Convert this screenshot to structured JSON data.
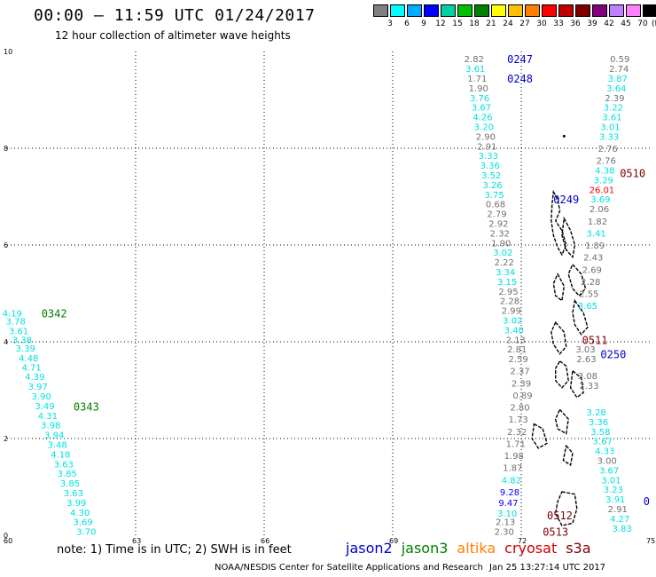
{
  "header": {
    "title": "00:00 – 11:59 UTC 01/24/2017",
    "subtitle": "12 hour collection of altimeter wave heights"
  },
  "colorbar": {
    "colors": [
      "#808080",
      "#00ffff",
      "#00aaff",
      "#0000ff",
      "#00d0a0",
      "#00c000",
      "#008000",
      "#ffff00",
      "#ffc000",
      "#ff8000",
      "#ff0000",
      "#c00000",
      "#800000",
      "#800080",
      "#c080ff",
      "#ff80ff",
      "#000000"
    ],
    "labels": [
      "3",
      "6",
      "9",
      "12",
      "15",
      "18",
      "21",
      "24",
      "27",
      "30",
      "33",
      "36",
      "39",
      "42",
      "45",
      "70"
    ],
    "unit": "(ft)"
  },
  "axes": {
    "x_ticks": [
      "60",
      "63",
      "66",
      "69",
      "72",
      "75"
    ],
    "y_ticks": [
      "0",
      "2",
      "4",
      "6",
      "8",
      "10"
    ]
  },
  "tracks": [
    {
      "label": "0342",
      "label_color": "#008000",
      "label_lat": 4.6,
      "label_lon": 60.8,
      "points": [
        {
          "lat": 4.6,
          "lon": 60.12,
          "v": "4.19",
          "c": "#00e0e0"
        },
        {
          "lat": 4.43,
          "lon": 60.2,
          "v": "3.78",
          "c": "#00e0e0"
        },
        {
          "lat": 4.23,
          "lon": 60.27,
          "v": "3.61",
          "c": "#00e0e0"
        },
        {
          "lat": 4.05,
          "lon": 60.35,
          "v": "3.38",
          "c": "#00e0e0"
        },
        {
          "lat": 3.87,
          "lon": 60.43,
          "v": "3.39",
          "c": "#00e0e0"
        },
        {
          "lat": 3.67,
          "lon": 60.5,
          "v": "4.48",
          "c": "#00e0e0"
        },
        {
          "lat": 3.48,
          "lon": 60.57,
          "v": "4.71",
          "c": "#00e0e0"
        },
        {
          "lat": 3.28,
          "lon": 60.65,
          "v": "4.39",
          "c": "#00e0e0"
        },
        {
          "lat": 3.08,
          "lon": 60.72,
          "v": "3.97",
          "c": "#00e0e0"
        },
        {
          "lat": 2.88,
          "lon": 60.8,
          "v": "3.90",
          "c": "#00e0e0"
        },
        {
          "lat": 2.68,
          "lon": 60.88,
          "v": "3.49",
          "c": "#00e0e0"
        }
      ]
    },
    {
      "label": "0343",
      "label_color": "#008000",
      "label_lat": 2.67,
      "label_lon": 61.55,
      "points": [
        {
          "lat": 2.48,
          "lon": 60.95,
          "v": "4.31",
          "c": "#00e0e0"
        },
        {
          "lat": 2.28,
          "lon": 61.02,
          "v": "3.98",
          "c": "#00e0e0"
        },
        {
          "lat": 2.08,
          "lon": 61.1,
          "v": "3.94",
          "c": "#00e0e0"
        },
        {
          "lat": 1.88,
          "lon": 61.17,
          "v": "3.48",
          "c": "#00e0e0"
        },
        {
          "lat": 1.68,
          "lon": 61.25,
          "v": "4.18",
          "c": "#00e0e0"
        },
        {
          "lat": 1.48,
          "lon": 61.32,
          "v": "3.63",
          "c": "#00e0e0"
        },
        {
          "lat": 1.28,
          "lon": 61.4,
          "v": "3.85",
          "c": "#00e0e0"
        },
        {
          "lat": 1.08,
          "lon": 61.47,
          "v": "3.85",
          "c": "#00e0e0"
        },
        {
          "lat": 0.88,
          "lon": 61.55,
          "v": "3.63",
          "c": "#00e0e0"
        },
        {
          "lat": 0.68,
          "lon": 61.62,
          "v": "3.99",
          "c": "#00e0e0"
        },
        {
          "lat": 0.48,
          "lon": 61.7,
          "v": "4.30",
          "c": "#00e0e0"
        },
        {
          "lat": 0.28,
          "lon": 61.77,
          "v": "3.69",
          "c": "#00e0e0"
        },
        {
          "lat": 0.08,
          "lon": 61.85,
          "v": "3.70",
          "c": "#00e0e0"
        }
      ]
    },
    {
      "label": "0247",
      "label_color": "#0000cc",
      "label_lat": 9.85,
      "label_lon": 71.67,
      "points": [
        {
          "lat": 9.85,
          "lon": 70.9,
          "v": "2.82",
          "c": "#707070"
        },
        {
          "lat": 9.65,
          "lon": 70.93,
          "v": "3.61",
          "c": "#00e0e0"
        },
        {
          "lat": 9.45,
          "lon": 70.97,
          "v": "1.71",
          "c": "#707070"
        },
        {
          "lat": 9.25,
          "lon": 71.0,
          "v": "1.90",
          "c": "#707070"
        },
        {
          "lat": 9.05,
          "lon": 71.03,
          "v": "3.76",
          "c": "#00e0e0"
        },
        {
          "lat": 8.85,
          "lon": 71.07,
          "v": "3.67",
          "c": "#00e0e0"
        },
        {
          "lat": 8.65,
          "lon": 71.1,
          "v": "4.26",
          "c": "#00e0e0"
        },
        {
          "lat": 8.45,
          "lon": 71.13,
          "v": "3.20",
          "c": "#00e0e0"
        },
        {
          "lat": 8.25,
          "lon": 71.17,
          "v": "2.90",
          "c": "#707070"
        },
        {
          "lat": 8.05,
          "lon": 71.2,
          "v": "2.91",
          "c": "#707070"
        },
        {
          "lat": 7.85,
          "lon": 71.23,
          "v": "3.33",
          "c": "#00e0e0"
        },
        {
          "lat": 7.65,
          "lon": 71.27,
          "v": "3.36",
          "c": "#00e0e0"
        },
        {
          "lat": 7.45,
          "lon": 71.3,
          "v": "3.52",
          "c": "#00e0e0"
        },
        {
          "lat": 7.25,
          "lon": 71.33,
          "v": "3.26",
          "c": "#00e0e0"
        },
        {
          "lat": 7.05,
          "lon": 71.37,
          "v": "3.75",
          "c": "#00e0e0"
        },
        {
          "lat": 6.85,
          "lon": 71.4,
          "v": "0.68",
          "c": "#707070"
        },
        {
          "lat": 6.65,
          "lon": 71.43,
          "v": "2.79",
          "c": "#707070"
        },
        {
          "lat": 6.45,
          "lon": 71.47,
          "v": "2.92",
          "c": "#707070"
        },
        {
          "lat": 6.25,
          "lon": 71.5,
          "v": "2.32",
          "c": "#707070"
        },
        {
          "lat": 6.05,
          "lon": 71.53,
          "v": "1.90",
          "c": "#707070"
        },
        {
          "lat": 5.85,
          "lon": 71.57,
          "v": "3.02",
          "c": "#00e0e0"
        },
        {
          "lat": 5.65,
          "lon": 71.6,
          "v": "2.22",
          "c": "#707070"
        },
        {
          "lat": 5.45,
          "lon": 71.63,
          "v": "3.34",
          "c": "#00e0e0"
        },
        {
          "lat": 5.25,
          "lon": 71.67,
          "v": "3.15",
          "c": "#00e0e0"
        },
        {
          "lat": 5.05,
          "lon": 71.7,
          "v": "2.95",
          "c": "#707070"
        }
      ]
    },
    {
      "label": "0248",
      "label_color": "#0000cc",
      "label_lat": 9.45,
      "label_lon": 71.67,
      "points": [
        {
          "lat": 4.85,
          "lon": 71.73,
          "v": "2.28",
          "c": "#707070"
        },
        {
          "lat": 4.65,
          "lon": 71.77,
          "v": "2.99",
          "c": "#707070"
        },
        {
          "lat": 4.45,
          "lon": 71.8,
          "v": "3.02",
          "c": "#00e0e0"
        },
        {
          "lat": 4.25,
          "lon": 71.83,
          "v": "3.40",
          "c": "#00e0e0"
        },
        {
          "lat": 4.05,
          "lon": 71.87,
          "v": "2.13",
          "c": "#707070"
        },
        {
          "lat": 3.85,
          "lon": 71.9,
          "v": "2.81",
          "c": "#707070"
        },
        {
          "lat": 3.65,
          "lon": 71.93,
          "v": "2.59",
          "c": "#707070"
        },
        {
          "lat": 3.4,
          "lon": 71.97,
          "v": "2.37",
          "c": "#707070"
        },
        {
          "lat": 3.15,
          "lon": 72.0,
          "v": "2.39",
          "c": "#707070"
        },
        {
          "lat": 2.9,
          "lon": 72.03,
          "v": "0.89",
          "c": "#707070"
        },
        {
          "lat": 2.65,
          "lon": 71.97,
          "v": "2.80",
          "c": "#707070"
        },
        {
          "lat": 2.4,
          "lon": 71.93,
          "v": "1.73",
          "c": "#707070"
        },
        {
          "lat": 2.15,
          "lon": 71.9,
          "v": "2.32",
          "c": "#707070"
        },
        {
          "lat": 1.9,
          "lon": 71.87,
          "v": "1.71",
          "c": "#707070"
        },
        {
          "lat": 1.65,
          "lon": 71.83,
          "v": "1.98",
          "c": "#707070"
        },
        {
          "lat": 1.4,
          "lon": 71.8,
          "v": "1.87",
          "c": "#707070"
        },
        {
          "lat": 1.15,
          "lon": 71.77,
          "v": "4.82",
          "c": "#00e0e0"
        },
        {
          "lat": 0.9,
          "lon": 71.73,
          "v": "9.28",
          "c": "#0000ff"
        },
        {
          "lat": 0.68,
          "lon": 71.7,
          "v": "9.47",
          "c": "#0000ff"
        },
        {
          "lat": 0.46,
          "lon": 71.67,
          "v": "3.10",
          "c": "#00e0e0"
        },
        {
          "lat": 0.28,
          "lon": 71.63,
          "v": "2.13",
          "c": "#707070"
        },
        {
          "lat": 0.08,
          "lon": 71.6,
          "v": "2.30",
          "c": "#707070"
        }
      ]
    },
    {
      "label": "0510",
      "label_color": "#800000",
      "label_lat": 7.5,
      "label_lon": 74.3,
      "points": [
        {
          "lat": 9.85,
          "lon": 74.3,
          "v": "0.59",
          "c": "#707070"
        },
        {
          "lat": 9.65,
          "lon": 74.28,
          "v": "2.74",
          "c": "#707070"
        },
        {
          "lat": 9.45,
          "lon": 74.25,
          "v": "3.87",
          "c": "#00e0e0"
        },
        {
          "lat": 9.25,
          "lon": 74.22,
          "v": "3.64",
          "c": "#00e0e0"
        },
        {
          "lat": 9.05,
          "lon": 74.18,
          "v": "2.39",
          "c": "#707070"
        },
        {
          "lat": 8.85,
          "lon": 74.15,
          "v": "3.22",
          "c": "#00e0e0"
        },
        {
          "lat": 8.65,
          "lon": 74.12,
          "v": "3.61",
          "c": "#00e0e0"
        },
        {
          "lat": 8.45,
          "lon": 74.08,
          "v": "3.01",
          "c": "#00e0e0"
        },
        {
          "lat": 8.25,
          "lon": 74.05,
          "v": "3.33",
          "c": "#00e0e0"
        },
        {
          "lat": 8.0,
          "lon": 74.02,
          "v": "2.76",
          "c": "#707070"
        },
        {
          "lat": 7.75,
          "lon": 73.98,
          "v": "2.76",
          "c": "#707070"
        },
        {
          "lat": 7.55,
          "lon": 73.95,
          "v": "4.38",
          "c": "#00e0e0"
        },
        {
          "lat": 7.35,
          "lon": 73.92,
          "v": "3.29",
          "c": "#00e0e0"
        },
        {
          "lat": 7.15,
          "lon": 73.88,
          "v": "26.01",
          "c": "#ff0000"
        },
        {
          "lat": 6.95,
          "lon": 73.85,
          "v": "3.69",
          "c": "#00e0e0"
        },
        {
          "lat": 6.75,
          "lon": 73.82,
          "v": "2.06",
          "c": "#707070"
        },
        {
          "lat": 6.5,
          "lon": 73.78,
          "v": "1.82",
          "c": "#707070"
        },
        {
          "lat": 6.25,
          "lon": 73.75,
          "v": "3.41",
          "c": "#00e0e0"
        },
        {
          "lat": 6.0,
          "lon": 73.72,
          "v": "1.89",
          "c": "#707070"
        },
        {
          "lat": 5.75,
          "lon": 73.68,
          "v": "2.43",
          "c": "#707070"
        },
        {
          "lat": 5.5,
          "lon": 73.65,
          "v": "2.69",
          "c": "#707070"
        },
        {
          "lat": 5.25,
          "lon": 73.62,
          "v": "2.28",
          "c": "#707070"
        },
        {
          "lat": 5.0,
          "lon": 73.58,
          "v": "2.55",
          "c": "#707070"
        },
        {
          "lat": 4.75,
          "lon": 73.55,
          "v": "3.65",
          "c": "#00e0e0"
        }
      ]
    },
    {
      "label": "0511",
      "label_color": "#800000",
      "label_lat": 4.05,
      "label_lon": 73.42,
      "points": [
        {
          "lat": 3.85,
          "lon": 73.5,
          "v": "3.03",
          "c": "#707070"
        },
        {
          "lat": 3.65,
          "lon": 73.52,
          "v": "2.63",
          "c": "#707070"
        },
        {
          "lat": 3.3,
          "lon": 73.55,
          "v": "3.08",
          "c": "#707070"
        },
        {
          "lat": 3.1,
          "lon": 73.58,
          "v": "2.33",
          "c": "#707070"
        },
        {
          "lat": 2.55,
          "lon": 73.75,
          "v": "3.28",
          "c": "#00e0e0"
        },
        {
          "lat": 2.35,
          "lon": 73.8,
          "v": "3.36",
          "c": "#00e0e0"
        },
        {
          "lat": 2.15,
          "lon": 73.85,
          "v": "3.58",
          "c": "#00e0e0"
        },
        {
          "lat": 1.95,
          "lon": 73.9,
          "v": "3.67",
          "c": "#00e0e0"
        },
        {
          "lat": 1.75,
          "lon": 73.95,
          "v": "4.33",
          "c": "#00e0e0"
        },
        {
          "lat": 1.55,
          "lon": 74.0,
          "v": "3.00",
          "c": "#707070"
        },
        {
          "lat": 1.35,
          "lon": 74.05,
          "v": "3.67",
          "c": "#00e0e0"
        },
        {
          "lat": 1.15,
          "lon": 74.1,
          "v": "3.01",
          "c": "#00e0e0"
        },
        {
          "lat": 0.95,
          "lon": 74.15,
          "v": "3.23",
          "c": "#00e0e0"
        },
        {
          "lat": 0.75,
          "lon": 74.2,
          "v": "3.91",
          "c": "#00e0e0"
        },
        {
          "lat": 0.55,
          "lon": 74.25,
          "v": "2.91",
          "c": "#707070"
        },
        {
          "lat": 0.35,
          "lon": 74.3,
          "v": "4.27",
          "c": "#00e0e0"
        },
        {
          "lat": 0.15,
          "lon": 74.35,
          "v": "3.83",
          "c": "#00e0e0"
        }
      ]
    },
    {
      "label": "0249",
      "label_color": "#0000cc",
      "label_lat": 6.95,
      "label_lon": 72.75,
      "points": []
    },
    {
      "label": "0250",
      "label_color": "#0000cc",
      "label_lat": 3.75,
      "label_lon": 73.85,
      "points": []
    },
    {
      "label": "0512",
      "label_color": "#800000",
      "label_lat": 0.42,
      "label_lon": 72.6,
      "points": []
    },
    {
      "label": "0513",
      "label_color": "#800000",
      "label_lat": 0.08,
      "label_lon": 72.5,
      "points": []
    },
    {
      "label": "0",
      "label_color": "#0000cc",
      "label_lat": 0.72,
      "label_lon": 74.85,
      "points": []
    }
  ],
  "footer": {
    "note": "note: 1) Time is in UTC; 2) SWH is in feet",
    "satellites": [
      {
        "name": "jason2",
        "color": "#0000cc"
      },
      {
        "name": "jason3",
        "color": "#008000"
      },
      {
        "name": "altika",
        "color": "#ff8000"
      },
      {
        "name": "cryosat",
        "color": "#cc0000"
      },
      {
        "name": "s3a",
        "color": "#800000"
      }
    ],
    "credit": "NOAA/NESDIS Center for Satellite Applications and Research",
    "timestamp": "Jan 25 13:27:14 UTC 2017"
  }
}
